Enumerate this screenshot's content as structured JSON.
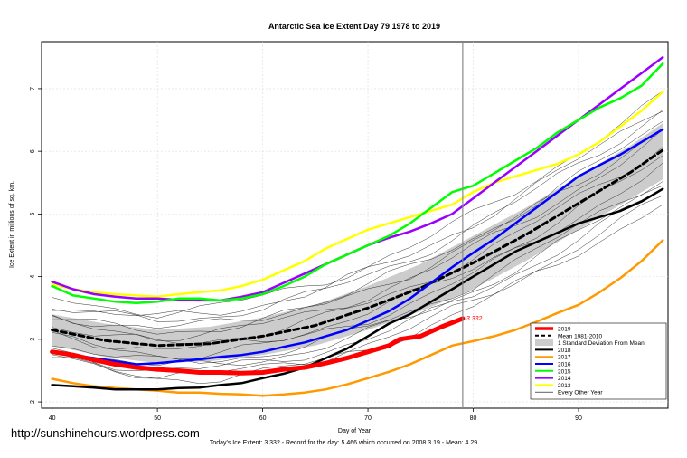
{
  "chart_data": {
    "type": "line",
    "title": "Antarctic Sea Ice Extent Day 79 1978 to 2019",
    "xlabel": "Day of Year",
    "ylabel": "Ice Extent in millions of sq. km.",
    "xlim": [
      39,
      98.5
    ],
    "ylim": [
      1.9,
      7.75
    ],
    "x_ticks": [
      40,
      50,
      60,
      70,
      80,
      90
    ],
    "y_ticks": [
      2,
      3,
      4,
      5,
      6,
      7
    ],
    "grid": true,
    "legend_position": "bottom-right",
    "vline_day": 79,
    "current_value_label": "3.332",
    "band": {
      "name": "1 Standard Deviation From Mean",
      "x": [
        40,
        45,
        50,
        55,
        60,
        65,
        70,
        75,
        80,
        85,
        90,
        95,
        98
      ],
      "lower": [
        2.9,
        2.72,
        2.62,
        2.65,
        2.75,
        2.9,
        3.15,
        3.45,
        3.8,
        4.25,
        4.75,
        5.25,
        5.55
      ],
      "upper": [
        3.4,
        3.25,
        3.15,
        3.2,
        3.35,
        3.55,
        3.85,
        4.2,
        4.65,
        5.1,
        5.6,
        6.1,
        6.45
      ]
    },
    "series": [
      {
        "name": "2019",
        "color": "#ff0000",
        "width": 5,
        "dash": "",
        "x": [
          40,
          42,
          44,
          46,
          48,
          50,
          52,
          54,
          56,
          58,
          60,
          62,
          64,
          66,
          68,
          70,
          72,
          73,
          75,
          77,
          79
        ],
        "y": [
          2.8,
          2.75,
          2.67,
          2.6,
          2.55,
          2.52,
          2.5,
          2.47,
          2.47,
          2.46,
          2.47,
          2.52,
          2.55,
          2.62,
          2.7,
          2.8,
          2.9,
          3.0,
          3.05,
          3.2,
          3.332
        ]
      },
      {
        "name": "Mean 1981-2010",
        "color": "#000000",
        "width": 3,
        "dash": "6,4",
        "x": [
          40,
          45,
          50,
          55,
          60,
          65,
          70,
          75,
          80,
          85,
          90,
          95,
          98
        ],
        "y": [
          3.15,
          2.98,
          2.9,
          2.93,
          3.05,
          3.22,
          3.5,
          3.82,
          4.22,
          4.67,
          5.17,
          5.67,
          6.02
        ]
      },
      {
        "name": "2018",
        "color": "#000000",
        "width": 2.5,
        "dash": "",
        "x": [
          40,
          42,
          44,
          46,
          48,
          50,
          52,
          54,
          56,
          58,
          60,
          62,
          64,
          66,
          68,
          70,
          72,
          74,
          76,
          78,
          80,
          82,
          84,
          86,
          88,
          90,
          92,
          94,
          96,
          98
        ],
        "y": [
          2.27,
          2.25,
          2.23,
          2.2,
          2.2,
          2.2,
          2.22,
          2.23,
          2.27,
          2.3,
          2.38,
          2.45,
          2.55,
          2.7,
          2.85,
          3.05,
          3.25,
          3.4,
          3.6,
          3.8,
          4.0,
          4.2,
          4.4,
          4.55,
          4.7,
          4.85,
          4.95,
          5.05,
          5.2,
          5.4
        ]
      },
      {
        "name": "2017",
        "color": "#ff9900",
        "width": 2.5,
        "dash": "",
        "x": [
          40,
          42,
          44,
          46,
          48,
          50,
          52,
          54,
          56,
          58,
          60,
          62,
          64,
          66,
          68,
          70,
          72,
          74,
          76,
          78,
          80,
          82,
          84,
          86,
          88,
          90,
          92,
          94,
          96,
          98
        ],
        "y": [
          2.37,
          2.3,
          2.25,
          2.22,
          2.2,
          2.18,
          2.15,
          2.15,
          2.13,
          2.12,
          2.1,
          2.12,
          2.15,
          2.2,
          2.28,
          2.38,
          2.48,
          2.6,
          2.75,
          2.9,
          2.97,
          3.05,
          3.15,
          3.28,
          3.42,
          3.55,
          3.75,
          3.98,
          4.25,
          4.58
        ]
      },
      {
        "name": "2016",
        "color": "#0000ff",
        "width": 2.5,
        "dash": "",
        "x": [
          40,
          42,
          44,
          46,
          48,
          50,
          52,
          54,
          56,
          58,
          60,
          62,
          64,
          66,
          68,
          70,
          72,
          74,
          76,
          78,
          80,
          82,
          84,
          86,
          88,
          90,
          92,
          94,
          96,
          98
        ],
        "y": [
          2.8,
          2.75,
          2.7,
          2.65,
          2.6,
          2.62,
          2.65,
          2.68,
          2.72,
          2.75,
          2.8,
          2.88,
          2.95,
          3.05,
          3.15,
          3.3,
          3.45,
          3.65,
          3.9,
          4.15,
          4.38,
          4.6,
          4.85,
          5.1,
          5.35,
          5.6,
          5.78,
          5.95,
          6.15,
          6.35
        ]
      },
      {
        "name": "2015",
        "color": "#00ff00",
        "width": 2.5,
        "dash": "",
        "x": [
          40,
          42,
          44,
          46,
          48,
          50,
          52,
          54,
          56,
          58,
          60,
          62,
          64,
          66,
          68,
          70,
          72,
          74,
          76,
          78,
          80,
          82,
          84,
          86,
          88,
          90,
          92,
          94,
          96,
          98
        ],
        "y": [
          3.85,
          3.7,
          3.65,
          3.6,
          3.58,
          3.6,
          3.65,
          3.65,
          3.62,
          3.65,
          3.72,
          3.85,
          4.0,
          4.2,
          4.35,
          4.5,
          4.65,
          4.85,
          5.1,
          5.35,
          5.45,
          5.65,
          5.85,
          6.05,
          6.3,
          6.5,
          6.7,
          6.85,
          7.05,
          7.4
        ]
      },
      {
        "name": "2014",
        "color": "#9900ff",
        "width": 2.5,
        "dash": "",
        "x": [
          40,
          42,
          44,
          46,
          48,
          50,
          52,
          54,
          56,
          58,
          60,
          62,
          64,
          66,
          68,
          70,
          72,
          74,
          76,
          78,
          80,
          82,
          84,
          86,
          88,
          90,
          92,
          94,
          96,
          98
        ],
        "y": [
          3.92,
          3.8,
          3.72,
          3.68,
          3.65,
          3.65,
          3.63,
          3.62,
          3.62,
          3.68,
          3.75,
          3.9,
          4.05,
          4.2,
          4.35,
          4.5,
          4.62,
          4.72,
          4.85,
          5.0,
          5.25,
          5.5,
          5.75,
          6.0,
          6.25,
          6.5,
          6.75,
          7.0,
          7.25,
          7.5
        ]
      },
      {
        "name": "2013",
        "color": "#ffff00",
        "width": 2.5,
        "dash": "",
        "x": [
          40,
          42,
          44,
          46,
          48,
          50,
          52,
          54,
          56,
          58,
          60,
          62,
          64,
          66,
          68,
          70,
          72,
          74,
          76,
          78,
          80,
          82,
          84,
          86,
          88,
          90,
          92,
          94,
          96,
          98
        ],
        "y": [
          3.88,
          3.8,
          3.75,
          3.72,
          3.7,
          3.68,
          3.72,
          3.75,
          3.78,
          3.85,
          3.95,
          4.1,
          4.25,
          4.45,
          4.6,
          4.75,
          4.85,
          4.95,
          5.05,
          5.15,
          5.35,
          5.5,
          5.6,
          5.7,
          5.8,
          5.95,
          6.15,
          6.4,
          6.65,
          6.95
        ]
      },
      {
        "name": "Every Other Year",
        "color": "#000000",
        "width": 0.6,
        "dash": "",
        "x": [],
        "y": []
      }
    ]
  },
  "watermark": "http://sunshinehours.wordpress.com",
  "footer": "Today's Ice Extent: 3.332  - Record for the day: 5.466 which occurred on 2008 3 19  - Mean: 4.29"
}
